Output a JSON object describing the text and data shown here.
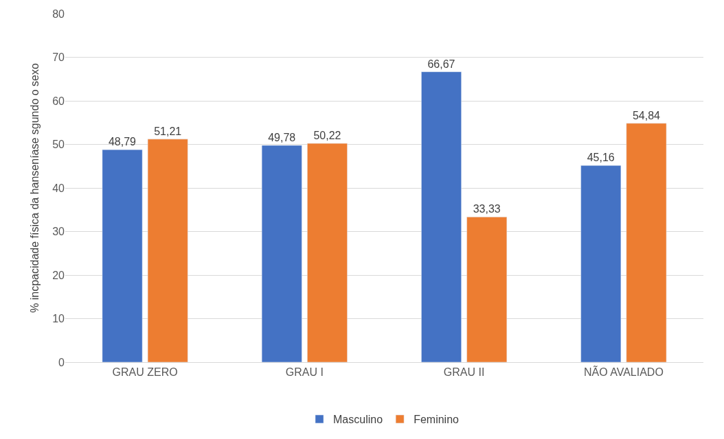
{
  "chart_data": {
    "type": "bar",
    "ylabel": "% incpacidade física da hanseníase sgundo o sexo",
    "categories": [
      "GRAU ZERO",
      "GRAU I",
      "GRAU II",
      "NÃO AVALIADO"
    ],
    "series": [
      {
        "name": "Masculino",
        "color": "#4472c4",
        "values": [
          48.79,
          49.78,
          66.67,
          45.16
        ],
        "value_labels": [
          "48,79",
          "49,78",
          "66,67",
          "45,16"
        ]
      },
      {
        "name": "Feminino",
        "color": "#ed7d31",
        "values": [
          51.21,
          50.22,
          33.33,
          54.84
        ],
        "value_labels": [
          "51,21",
          "50,22",
          "33,33",
          "54,84"
        ]
      }
    ],
    "ylim": [
      0,
      80
    ],
    "yticks": [
      0,
      10,
      20,
      30,
      40,
      50,
      60,
      70,
      80
    ],
    "grid": "y",
    "legend": "bottom"
  }
}
